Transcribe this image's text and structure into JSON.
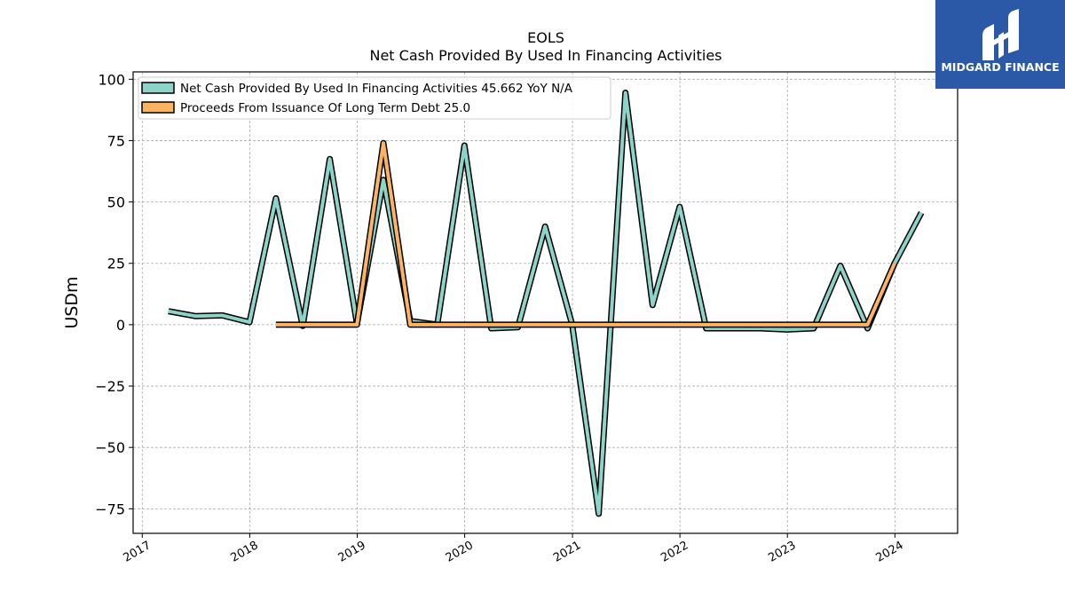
{
  "brand": {
    "name": "MIDGARD FINANCE",
    "color": "#2b59a8"
  },
  "chart_data": {
    "type": "line",
    "title": "EOLS",
    "subtitle": "Net Cash Provided By Used In Financing Activities",
    "xlabel": "",
    "ylabel": "USDm",
    "xlim": [
      "2016-12-01",
      "2024-08-01"
    ],
    "ylim": [
      -85,
      103
    ],
    "yticks": [
      -75,
      -50,
      -25,
      0,
      25,
      50,
      75,
      100
    ],
    "yticklabels": [
      "−75",
      "−50",
      "−25",
      "0",
      "25",
      "50",
      "75",
      "100"
    ],
    "xticks": [
      "2017-01-01",
      "2018-01-01",
      "2019-01-01",
      "2020-01-01",
      "2021-01-01",
      "2022-01-01",
      "2023-01-01",
      "2024-01-01"
    ],
    "xticklabels": [
      "2017",
      "2018",
      "2019",
      "2020",
      "2021",
      "2022",
      "2023",
      "2024"
    ],
    "grid": true,
    "legend_position": "top-left",
    "series": [
      {
        "name": "Net Cash Provided By Used In Financing Activities",
        "legend_label": "Net Cash Provided By Used In Financing Activities  45.662 YoY N/A",
        "color": "#8dd3c7",
        "x": [
          "2017-03-31",
          "2017-06-30",
          "2017-09-30",
          "2017-12-31",
          "2018-03-31",
          "2018-06-30",
          "2018-09-30",
          "2018-12-31",
          "2019-03-31",
          "2019-06-30",
          "2019-09-30",
          "2019-12-31",
          "2020-03-31",
          "2020-06-30",
          "2020-09-30",
          "2020-12-31",
          "2021-03-31",
          "2021-06-30",
          "2021-09-30",
          "2021-12-31",
          "2022-03-31",
          "2022-06-30",
          "2022-09-30",
          "2022-12-31",
          "2023-03-31",
          "2023-06-30",
          "2023-09-30",
          "2023-12-31",
          "2024-03-31"
        ],
        "y": [
          5.5,
          3.5,
          3.8,
          1.0,
          51.5,
          -0.5,
          67.5,
          0.5,
          59.0,
          1.5,
          0.0,
          73.0,
          -1.5,
          -1.0,
          40.0,
          0.0,
          -77.0,
          94.5,
          8.0,
          48.0,
          -1.5,
          -1.5,
          -1.5,
          -2.0,
          -1.5,
          24.0,
          -1.5,
          25.0,
          45.662
        ]
      },
      {
        "name": "Proceeds From Issuance Of Long Term Debt",
        "legend_label": "Proceeds From Issuance Of Long Term Debt  25.0",
        "color": "#fdb462",
        "x": [
          "2018-03-31",
          "2018-06-30",
          "2018-09-30",
          "2018-12-31",
          "2019-03-31",
          "2019-06-30",
          "2019-09-30",
          "2019-12-31",
          "2020-03-31",
          "2020-06-30",
          "2020-09-30",
          "2020-12-31",
          "2021-03-31",
          "2021-06-30",
          "2021-09-30",
          "2021-12-31",
          "2022-03-31",
          "2022-06-30",
          "2022-09-30",
          "2022-12-31",
          "2023-03-31",
          "2023-06-30",
          "2023-09-30",
          "2023-12-31"
        ],
        "y": [
          0,
          0,
          0,
          0,
          74.0,
          0,
          0,
          0,
          0,
          0,
          0,
          0,
          0,
          0,
          0,
          0,
          0,
          0,
          0,
          0,
          0,
          0,
          0,
          25.0
        ]
      }
    ]
  }
}
